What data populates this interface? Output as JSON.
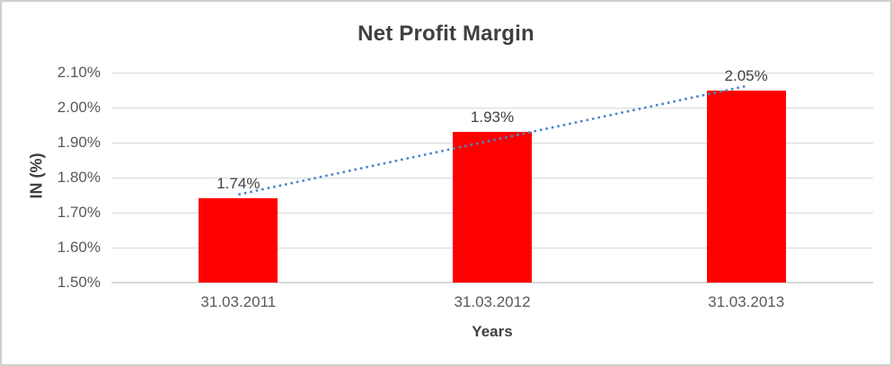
{
  "chart_data": {
    "type": "bar",
    "title": "Net Profit Margin",
    "xlabel": "Years",
    "ylabel": "IN (%)",
    "categories": [
      "31.03.2011",
      "31.03.2012",
      "31.03.2013"
    ],
    "values": [
      1.74,
      1.93,
      2.05
    ],
    "data_labels": [
      "1.74%",
      "1.93%",
      "2.05%"
    ],
    "ylim": [
      1.5,
      2.1
    ],
    "ytick_step": 0.1,
    "ytick_labels_top_to_bottom": [
      "2.10%",
      "2.00%",
      "1.90%",
      "1.80%",
      "1.70%",
      "1.60%",
      "1.50%"
    ],
    "grid": true,
    "legend": "none",
    "trendline": {
      "type": "linear",
      "style": "dotted",
      "color": "#4e87c9"
    },
    "colors": {
      "bar": "#ff0000",
      "gridline": "#d9d9d9",
      "tick_text": "#595959",
      "title_text": "#3f3f3f",
      "label_text": "#404040",
      "border": "#cfcfcf",
      "background": "#ffffff"
    }
  }
}
